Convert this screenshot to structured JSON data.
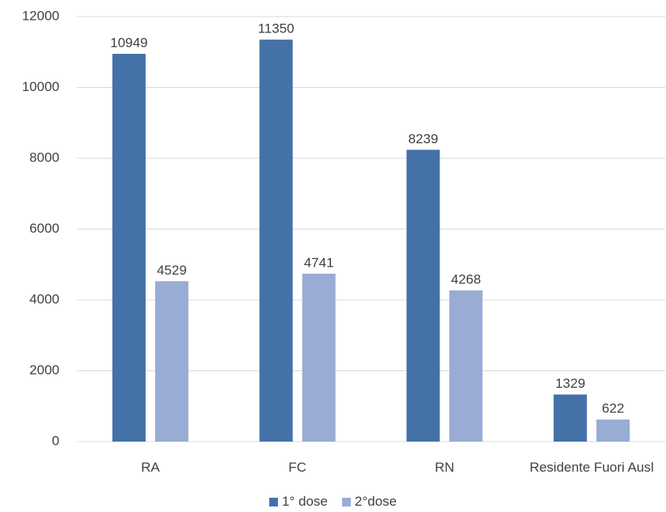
{
  "chart_data": {
    "type": "bar",
    "categories": [
      "RA",
      "FC",
      "RN",
      "Residente Fuori Ausl"
    ],
    "series": [
      {
        "name": "1° dose",
        "color": "#4472a8",
        "values": [
          10949,
          11350,
          8239,
          1329
        ]
      },
      {
        "name": "2°dose",
        "color": "#98acd4",
        "values": [
          4529,
          4741,
          4268,
          622
        ]
      }
    ],
    "ylim": [
      0,
      12000
    ],
    "yticks": [
      0,
      2000,
      4000,
      6000,
      8000,
      10000,
      12000
    ],
    "grid": true,
    "legend": "bottom"
  }
}
